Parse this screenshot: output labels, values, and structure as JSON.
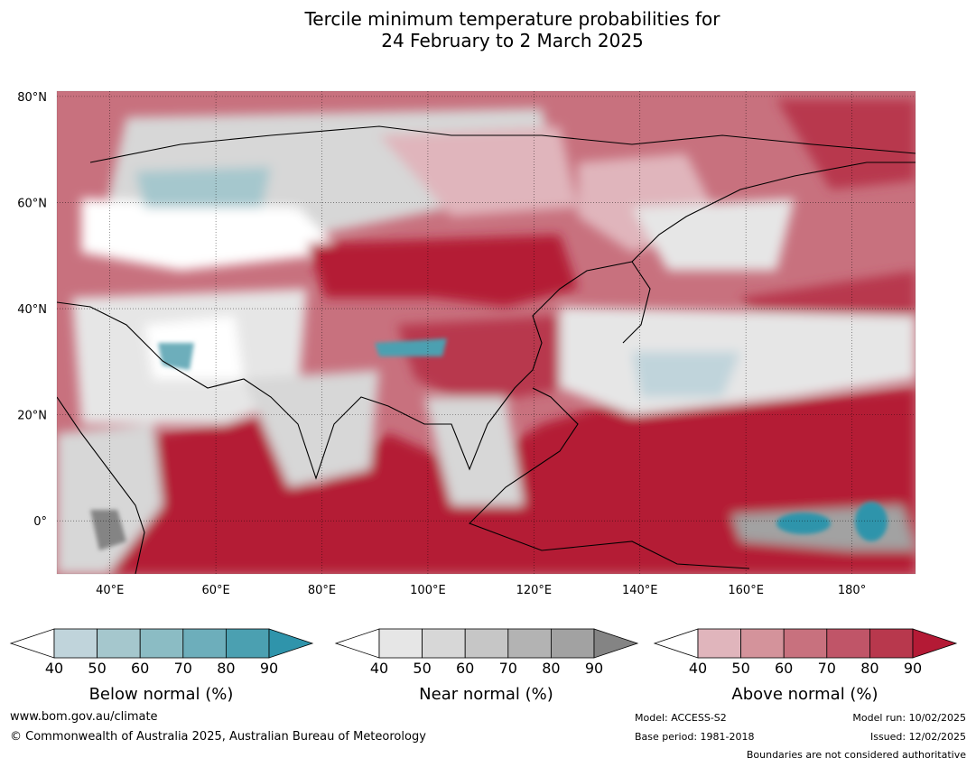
{
  "title": {
    "line1": "Tercile minimum temperature probabilities for",
    "line2": "24 February to 2 March 2025"
  },
  "map": {
    "lat_labels": [
      "80°N",
      "60°N",
      "40°N",
      "20°N",
      "0°"
    ],
    "lon_labels": [
      "40°E",
      "60°E",
      "80°E",
      "100°E",
      "120°E",
      "140°E",
      "160°E",
      "180°"
    ],
    "lon_range": [
      30,
      192
    ],
    "lat_range": [
      -10,
      81
    ]
  },
  "colorbars": [
    {
      "label": "Below normal (%)",
      "ticks": [
        "40",
        "50",
        "60",
        "70",
        "80",
        "90"
      ],
      "colors": [
        "#ffffff",
        "#c0d4db",
        "#a5c7cd",
        "#8bbcc4",
        "#6daebb",
        "#4ba0b1",
        "#2f94ab"
      ]
    },
    {
      "label": "Near normal (%)",
      "ticks": [
        "40",
        "50",
        "60",
        "70",
        "80",
        "90"
      ],
      "colors": [
        "#ffffff",
        "#e6e6e6",
        "#d7d7d7",
        "#c6c6c6",
        "#b3b3b3",
        "#a2a2a2",
        "#848484"
      ]
    },
    {
      "label": "Above normal (%)",
      "ticks": [
        "40",
        "50",
        "60",
        "70",
        "80",
        "90"
      ],
      "colors": [
        "#ffffff",
        "#e0b5bc",
        "#d4939b",
        "#c8717e",
        "#c05568",
        "#b8384d",
        "#b41a35"
      ]
    }
  ],
  "footer": {
    "website": "www.bom.gov.au/climate",
    "copyright": "© Commonwealth of Australia 2025, Australian Bureau of Meteorology",
    "model": "Model: ACCESS-S2",
    "base_period": "Base period: 1981-2018",
    "model_run": "Model run: 10/02/2025",
    "issued": "Issued: 12/02/2025",
    "disclaimer": "Boundaries are not considered authoritative"
  }
}
